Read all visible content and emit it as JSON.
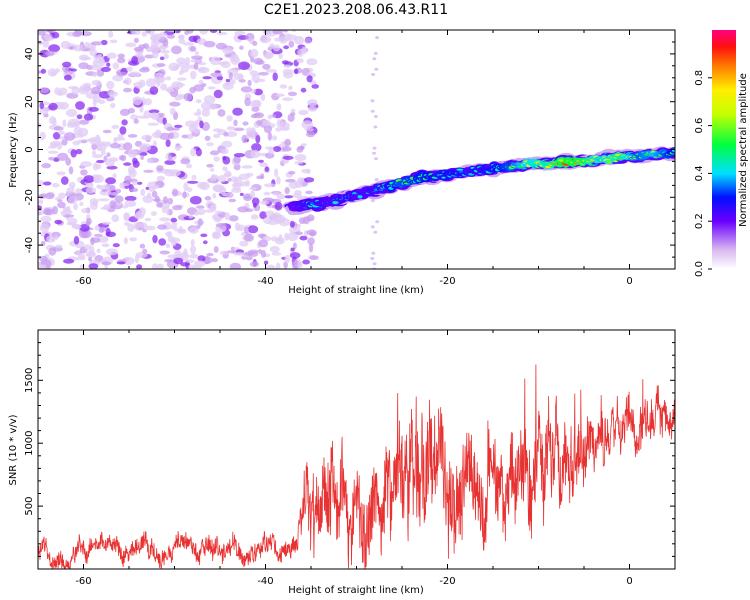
{
  "title": "C2E1.2023.208.06.43.R11",
  "chart_data": [
    {
      "type": "heatmap",
      "xlabel": "Height of straight line (km)",
      "ylabel": "Frequency (Hz)",
      "xlim": [
        -65,
        5
      ],
      "ylim": [
        -50,
        50
      ],
      "xticks": [
        -60,
        -40,
        -20,
        0
      ],
      "yticks": [
        -40,
        -20,
        0,
        20,
        40
      ],
      "colorbar": {
        "label": "Normalized spectral amplitude",
        "range": [
          0.0,
          1.0
        ],
        "ticks": [
          0.0,
          0.2,
          0.4,
          0.6,
          0.8
        ]
      },
      "noise_region_x": [
        -65,
        -36
      ],
      "signal_trace": {
        "x": [
          -37,
          -35,
          -33,
          -31,
          -29,
          -27,
          -25,
          -23,
          -21,
          -19,
          -17,
          -15,
          -13,
          -11,
          -9,
          -7,
          -5,
          -3,
          -1,
          1,
          3,
          5
        ],
        "y": [
          -24,
          -23,
          -22,
          -20,
          -18,
          -16,
          -14,
          -12,
          -11,
          -10,
          -9,
          -8,
          -7,
          -6,
          -6,
          -5,
          -5,
          -4,
          -3,
          -3,
          -2,
          -1
        ],
        "peak_amplitude": [
          0.35,
          0.45,
          0.4,
          0.45,
          0.4,
          0.45,
          0.6,
          0.55,
          0.5,
          0.5,
          0.45,
          0.5,
          0.6,
          0.75,
          0.8,
          0.95,
          0.9,
          0.7,
          0.85,
          0.6,
          0.7,
          0.5
        ]
      }
    },
    {
      "type": "line",
      "xlabel": "Height of straight line (km)",
      "ylabel": "SNR (10 * v/v)",
      "xlim": [
        -65,
        5
      ],
      "ylim": [
        0,
        1900
      ],
      "xticks": [
        -60,
        -40,
        -20,
        0
      ],
      "yticks": [
        500,
        1000,
        1500
      ],
      "series_color": "#e83232",
      "envelope": {
        "x": [
          -65,
          -55,
          -45,
          -40,
          -36.5,
          -35.5,
          -33,
          -30,
          -28,
          -25,
          -22,
          -20,
          -17,
          -15,
          -13,
          -11,
          -9.5,
          -8,
          -6,
          -4,
          -2,
          0,
          2,
          5
        ],
        "mean": [
          150,
          150,
          160,
          170,
          175,
          850,
          700,
          500,
          600,
          650,
          700,
          750,
          700,
          600,
          700,
          750,
          900,
          850,
          900,
          1050,
          1100,
          1200,
          1250,
          1300
        ],
        "spread": [
          110,
          110,
          120,
          120,
          130,
          450,
          500,
          450,
          500,
          520,
          520,
          520,
          520,
          480,
          500,
          520,
          600,
          400,
          380,
          320,
          280,
          260,
          230,
          220
        ]
      }
    }
  ]
}
